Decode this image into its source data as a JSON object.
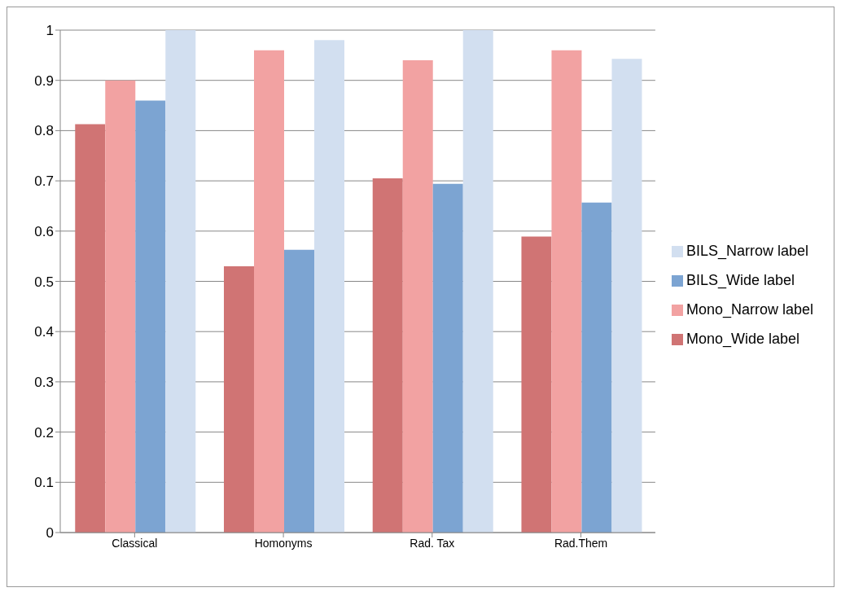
{
  "chart_data": {
    "type": "bar",
    "categories": [
      "Classical",
      "Homonyms",
      "Rad. Tax",
      "Rad.Them"
    ],
    "series": [
      {
        "name": "Mono_Wide label",
        "color": "#d07474",
        "values": [
          0.813,
          0.53,
          0.705,
          0.589
        ]
      },
      {
        "name": "Mono_Narrow label",
        "color": "#f2a2a2",
        "values": [
          0.9,
          0.96,
          0.94,
          0.96
        ]
      },
      {
        "name": "BILS_Wide label",
        "color": "#7ca4d2",
        "values": [
          0.86,
          0.563,
          0.694,
          0.657
        ]
      },
      {
        "name": "BILS_Narrow label",
        "color": "#d2dff0",
        "values": [
          1.0,
          0.98,
          1.0,
          0.943
        ]
      }
    ],
    "ylim": [
      0,
      1
    ],
    "yticks": [
      0,
      0.1,
      0.2,
      0.3,
      0.4,
      0.5,
      0.6,
      0.7,
      0.8,
      0.9,
      1
    ],
    "grid": "y",
    "legend": "right"
  }
}
